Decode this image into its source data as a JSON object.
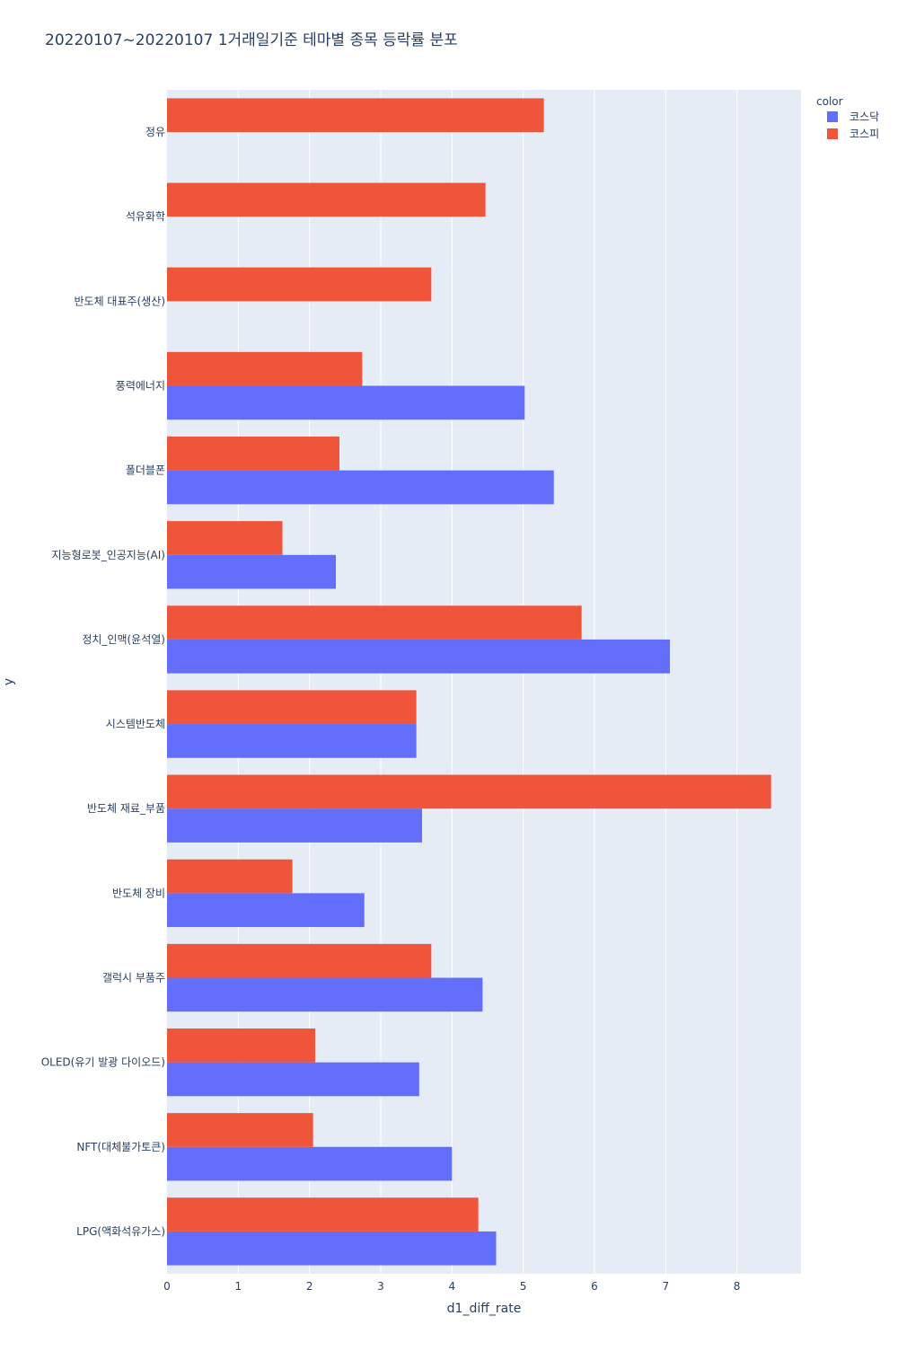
{
  "chart_data": {
    "type": "bar",
    "orientation": "horizontal",
    "barmode": "group",
    "title": "20220107~20220107 1거래일기준 테마별 종목 등락률 분포",
    "xlabel": "d1_diff_rate",
    "ylabel": "y",
    "xlim": [
      0,
      8.9
    ],
    "xticks": [
      0,
      1,
      2,
      3,
      4,
      5,
      6,
      7,
      8
    ],
    "grid": true,
    "legend_title": "color",
    "legend_position": "top-right",
    "categories": [
      "정유",
      "석유화학",
      "반도체 대표주(생산)",
      "풍력에너지",
      "폴더블폰",
      "지능형로봇_인공지능(AI)",
      "정치_인맥(윤석열)",
      "시스템반도체",
      "반도체 재료_부품",
      "반도체 장비",
      "갤럭시 부품주",
      "OLED(유기 발광 다이오드)",
      "NFT(대체불가토큰)",
      "LPG(액화석유가스)"
    ],
    "series": [
      {
        "name": "코스닥",
        "color": "#636efa",
        "values": [
          null,
          null,
          null,
          5.02,
          5.43,
          2.37,
          7.06,
          3.5,
          3.58,
          2.77,
          4.43,
          3.54,
          4.0,
          4.62
        ]
      },
      {
        "name": "코스피",
        "color": "#ef553b",
        "values": [
          5.29,
          4.47,
          3.71,
          2.74,
          2.42,
          1.62,
          5.82,
          3.5,
          8.48,
          1.76,
          3.71,
          2.08,
          2.05,
          4.37
        ]
      }
    ],
    "colors": {
      "plot_background": "#e5ecf6",
      "gridline": "#ffffff",
      "text": "#2a3f5f"
    }
  }
}
